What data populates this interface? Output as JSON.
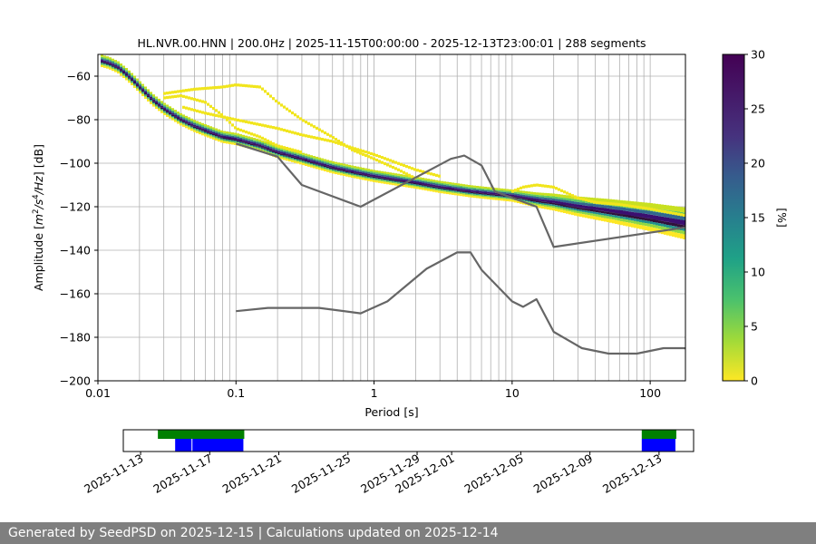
{
  "chart_data": [
    {
      "type": "heatmap",
      "title": "HL.NVR.00.HNN | 200.0Hz | 2025-11-15T00:00:00 - 2025-12-13T23:00:01 | 288 segments",
      "xlabel": "Period [s]",
      "ylabel_parts": [
        "Amplitude [",
        "m",
        "2",
        "/",
        "s",
        "4",
        "/",
        "Hz",
        "] [dB]"
      ],
      "x_scale": "log",
      "xlim": [
        0.01,
        180
      ],
      "ylim": [
        -200,
        -50
      ],
      "x_ticks": [
        {
          "value": 0.01,
          "label": "0.01"
        },
        {
          "value": 0.1,
          "label": "0.1"
        },
        {
          "value": 1,
          "label": "1"
        },
        {
          "value": 10,
          "label": "10"
        },
        {
          "value": 100,
          "label": "100"
        }
      ],
      "y_ticks": [
        {
          "value": -60,
          "label": "−60"
        },
        {
          "value": -80,
          "label": "−80"
        },
        {
          "value": -100,
          "label": "−100"
        },
        {
          "value": -120,
          "label": "−120"
        },
        {
          "value": -140,
          "label": "−140"
        },
        {
          "value": -160,
          "label": "−160"
        },
        {
          "value": -180,
          "label": "−180"
        },
        {
          "value": -200,
          "label": "−200"
        }
      ],
      "grid": true,
      "colorbar": {
        "label": "[%]",
        "range": [
          0,
          30
        ],
        "colormap": "viridis",
        "ticks": [
          {
            "value": 0,
            "label": "0"
          },
          {
            "value": 5,
            "label": "5"
          },
          {
            "value": 10,
            "label": "10"
          },
          {
            "value": 15,
            "label": "15"
          },
          {
            "value": 20,
            "label": "20"
          },
          {
            "value": 25,
            "label": "25"
          },
          {
            "value": 30,
            "label": "30"
          }
        ]
      },
      "mode_curve": [
        [
          0.0105,
          -53
        ],
        [
          0.012,
          -54
        ],
        [
          0.014,
          -56
        ],
        [
          0.016,
          -59
        ],
        [
          0.018,
          -62
        ],
        [
          0.02,
          -65
        ],
        [
          0.025,
          -71
        ],
        [
          0.03,
          -75
        ],
        [
          0.04,
          -80
        ],
        [
          0.05,
          -83
        ],
        [
          0.06,
          -85
        ],
        [
          0.08,
          -88
        ],
        [
          0.1,
          -89
        ],
        [
          0.15,
          -92
        ],
        [
          0.2,
          -95
        ],
        [
          0.3,
          -98
        ],
        [
          0.5,
          -102
        ],
        [
          0.7,
          -104
        ],
        [
          1,
          -106
        ],
        [
          2,
          -109
        ],
        [
          3,
          -111
        ],
        [
          5,
          -113
        ],
        [
          7,
          -114
        ],
        [
          10,
          -115
        ],
        [
          15,
          -117
        ],
        [
          20,
          -118
        ],
        [
          30,
          -120
        ],
        [
          50,
          -122
        ],
        [
          100,
          -125
        ],
        [
          180,
          -128
        ]
      ],
      "secondary_bands": [
        {
          "name": "upper",
          "points": [
            [
              0.03,
              -68
            ],
            [
              0.05,
              -66
            ],
            [
              0.08,
              -65
            ],
            [
              0.1,
              -64
            ],
            [
              0.15,
              -65
            ],
            [
              0.2,
              -72
            ],
            [
              0.3,
              -80
            ],
            [
              0.5,
              -88
            ],
            [
              0.7,
              -94
            ],
            [
              1,
              -98
            ],
            [
              1.5,
              -103
            ],
            [
              2,
              -107
            ]
          ]
        },
        {
          "name": "middle",
          "points": [
            [
              0.04,
              -74
            ],
            [
              0.06,
              -77
            ],
            [
              0.1,
              -80
            ],
            [
              0.2,
              -84
            ],
            [
              0.3,
              -87
            ],
            [
              0.5,
              -90
            ],
            [
              0.7,
              -93
            ],
            [
              1,
              -96
            ],
            [
              2,
              -103
            ],
            [
              3,
              -106
            ]
          ]
        },
        {
          "name": "lower",
          "points": [
            [
              0.03,
              -70
            ],
            [
              0.04,
              -69
            ],
            [
              0.06,
              -72
            ],
            [
              0.08,
              -78
            ],
            [
              0.1,
              -84
            ],
            [
              0.15,
              -88
            ],
            [
              0.2,
              -92
            ],
            [
              0.3,
              -95
            ]
          ]
        },
        {
          "name": "longperiod",
          "points": [
            [
              10,
              -113
            ],
            [
              12,
              -111
            ],
            [
              15,
              -110
            ],
            [
              20,
              -111
            ],
            [
              30,
              -116
            ],
            [
              40,
              -118
            ],
            [
              60,
              -119
            ],
            [
              100,
              -121
            ],
            [
              180,
              -124
            ]
          ]
        }
      ],
      "reference_curves": [
        {
          "name": "curve-a",
          "points": [
            [
              0.1,
              -91
            ],
            [
              0.2,
              -97
            ],
            [
              0.3,
              -110
            ],
            [
              0.8,
              -120
            ],
            [
              3.6,
              -98
            ],
            [
              4.5,
              -96.5
            ],
            [
              6,
              -101
            ],
            [
              7.5,
              -113
            ],
            [
              15,
              -120
            ],
            [
              20,
              -138.5
            ],
            [
              180,
              -129.5
            ]
          ]
        },
        {
          "name": "curve-b",
          "points": [
            [
              0.1,
              -168
            ],
            [
              0.17,
              -166.5
            ],
            [
              0.4,
              -166.5
            ],
            [
              0.8,
              -169
            ],
            [
              1.25,
              -163.5
            ],
            [
              2.4,
              -148.5
            ],
            [
              4,
              -141
            ],
            [
              5,
              -141
            ],
            [
              6,
              -149
            ],
            [
              10,
              -163.5
            ],
            [
              12,
              -166
            ],
            [
              15,
              -162.5
            ],
            [
              20,
              -177.5
            ],
            [
              32,
              -185
            ],
            [
              50,
              -187.5
            ],
            [
              80,
              -187.5
            ],
            [
              125,
              -185
            ],
            [
              175,
              -185
            ],
            [
              200,
              -185.5
            ]
          ]
        }
      ]
    },
    {
      "type": "timeline",
      "x_ticks": [
        "2025-11-13",
        "2025-11-17",
        "2025-11-21",
        "2025-11-25",
        "2025-11-29",
        "2025-12-01",
        "2025-12-05",
        "2025-12-09",
        "2025-12-13"
      ],
      "xlim": [
        "2025-11-12",
        "2025-12-15"
      ],
      "series": [
        {
          "color": "#008000",
          "intervals": [
            [
              "2025-11-14",
              "2025-11-19"
            ],
            [
              "2025-12-12",
              "2025-12-14"
            ]
          ]
        },
        {
          "color": "#0000ff",
          "intervals": [
            [
              "2025-11-15",
              "2025-11-16"
            ],
            [
              "2025-11-16",
              "2025-11-19"
            ],
            [
              "2025-12-12",
              "2025-12-14"
            ]
          ]
        }
      ]
    }
  ],
  "footer": {
    "text": "Generated by SeedPSD on 2025-12-15 | Calculations updated on 2025-12-14"
  }
}
